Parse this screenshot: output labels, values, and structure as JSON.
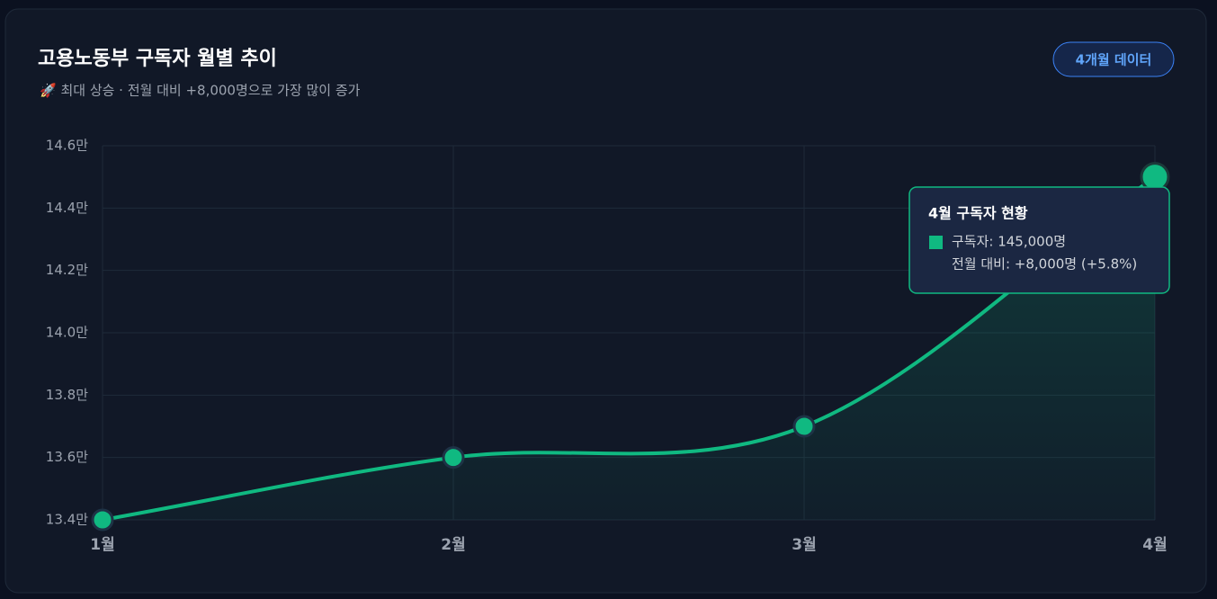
{
  "chart_data": {
    "type": "line",
    "title": "고용노동부 구독자 월별 추이",
    "subtitle": "🚀 최대 상승 · 전월 대비 +8,000명으로 가장 많이 증가",
    "badge": "4개월 데이터",
    "categories": [
      "1월",
      "2월",
      "3월",
      "4월"
    ],
    "series": [
      {
        "name": "구독자",
        "color": "#10b981",
        "values": [
          134000,
          136000,
          137000,
          145000
        ]
      }
    ],
    "ylim": [
      134000,
      146000
    ],
    "yticks": [
      {
        "value": 134000,
        "label": "13.4만"
      },
      {
        "value": 136000,
        "label": "13.6만"
      },
      {
        "value": 138000,
        "label": "13.8만"
      },
      {
        "value": 140000,
        "label": "14.0만"
      },
      {
        "value": 142000,
        "label": "14.2만"
      },
      {
        "value": 144000,
        "label": "14.4만"
      },
      {
        "value": 146000,
        "label": "14.6만"
      }
    ],
    "grid": true,
    "tooltip": {
      "title": "4월 구독자 현황",
      "lines": [
        "구독자: 145,000명",
        "전월 대비: +8,000명 (+5.8%)"
      ]
    }
  }
}
